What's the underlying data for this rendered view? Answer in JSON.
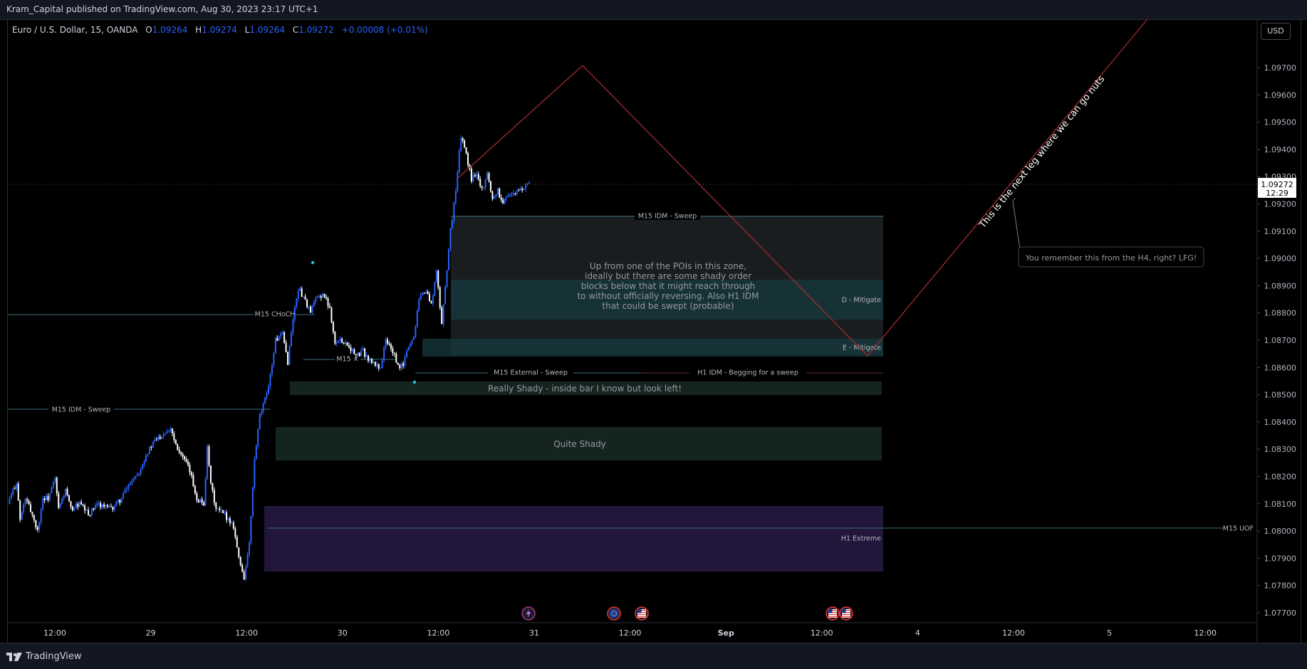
{
  "header": {
    "published_by": "Kram_Capital published on TradingView.com, Aug 30, 2023 23:17 UTC+1"
  },
  "legend": {
    "symbol": "Euro / U.S. Dollar, 15, OANDA",
    "o_label": "O",
    "o_value": "1.09264",
    "h_label": "H",
    "h_value": "1.09274",
    "l_label": "L",
    "l_value": "1.09264",
    "c_label": "C",
    "c_value": "1.09272",
    "change": "+0.00008 (+0.01%)"
  },
  "currency_button": "USD",
  "footer": {
    "brand": "TradingView"
  },
  "colors": {
    "up": "#2962ff",
    "down": "#ffffff",
    "price_line": "#4a4f5c",
    "zone_teal": "#17393d",
    "zone_dark": "#1a1d20",
    "zone_green": "#142520",
    "zone_purple": "#22163a",
    "projection": "#a22a2e"
  },
  "chart_data": {
    "type": "candlestick",
    "price_axis": {
      "ticks": [
        "1.07700",
        "1.07800",
        "1.07900",
        "1.08000",
        "1.08100",
        "1.08200",
        "1.08300",
        "1.08400",
        "1.08500",
        "1.08600",
        "1.08700",
        "1.08800",
        "1.08900",
        "1.09000",
        "1.09100",
        "1.09200",
        "1.09300",
        "1.09400",
        "1.09500",
        "1.09600",
        "1.09700"
      ],
      "range": [
        1.0764,
        1.0982
      ]
    },
    "time_axis": {
      "ticks": [
        "12:00",
        "29",
        "12:00",
        "30",
        "12:00",
        "31",
        "12:00",
        "Sep",
        "12:00",
        "4",
        "12:00",
        "5",
        "12:00"
      ]
    },
    "last_price": {
      "value": "1.09272",
      "countdown": "12:29"
    },
    "series": [
      {
        "name": "EUR/USD 15m",
        "path": [
          [
            0,
            1.081
          ],
          [
            6,
            1.0815
          ],
          [
            10,
            1.0818
          ],
          [
            14,
            1.0804
          ],
          [
            20,
            1.0812
          ],
          [
            28,
            1.0806
          ],
          [
            34,
            1.08
          ],
          [
            40,
            1.0812
          ],
          [
            46,
            1.0812
          ],
          [
            54,
            1.0819
          ],
          [
            58,
            1.0808
          ],
          [
            66,
            1.0815
          ],
          [
            72,
            1.0808
          ],
          [
            82,
            1.081
          ],
          [
            92,
            1.0806
          ],
          [
            104,
            1.081
          ],
          [
            118,
            1.0808
          ],
          [
            130,
            1.0812
          ],
          [
            140,
            1.0818
          ],
          [
            150,
            1.0822
          ],
          [
            158,
            1.0828
          ],
          [
            168,
            1.0833
          ],
          [
            178,
            1.0836
          ],
          [
            186,
            1.0838
          ],
          [
            192,
            1.0832
          ],
          [
            200,
            1.0827
          ],
          [
            208,
            1.0822
          ],
          [
            216,
            1.0812
          ],
          [
            224,
            1.081
          ],
          [
            228,
            1.083
          ],
          [
            232,
            1.0817
          ],
          [
            238,
            1.0808
          ],
          [
            248,
            1.0806
          ],
          [
            258,
            1.0802
          ],
          [
            264,
            1.079
          ],
          [
            270,
            1.0783
          ],
          [
            276,
            1.0795
          ],
          [
            282,
            1.0826
          ],
          [
            288,
            1.0842
          ],
          [
            294,
            1.0848
          ],
          [
            300,
            1.0857
          ],
          [
            306,
            1.087
          ],
          [
            314,
            1.0872
          ],
          [
            320,
            1.0862
          ],
          [
            326,
            1.0878
          ],
          [
            332,
            1.0889
          ],
          [
            338,
            1.0886
          ],
          [
            346,
            1.088
          ],
          [
            352,
            1.0885
          ],
          [
            360,
            1.0887
          ],
          [
            368,
            1.0882
          ],
          [
            374,
            1.0869
          ],
          [
            382,
            1.087
          ],
          [
            390,
            1.0868
          ],
          [
            398,
            1.0864
          ],
          [
            406,
            1.0866
          ],
          [
            412,
            1.0863
          ],
          [
            420,
            1.0861
          ],
          [
            426,
            1.086
          ],
          [
            432,
            1.087
          ],
          [
            440,
            1.0866
          ],
          [
            446,
            1.086
          ],
          [
            452,
            1.0861
          ],
          [
            458,
            1.0868
          ],
          [
            464,
            1.0871
          ],
          [
            470,
            1.0886
          ],
          [
            478,
            1.0888
          ],
          [
            484,
            1.0883
          ],
          [
            490,
            1.0895
          ],
          [
            496,
            1.0876
          ],
          [
            500,
            1.089
          ],
          [
            506,
            1.091
          ],
          [
            512,
            1.0925
          ],
          [
            518,
            1.0945
          ],
          [
            524,
            1.0938
          ],
          [
            530,
            1.0929
          ],
          [
            536,
            1.0932
          ],
          [
            542,
            1.0925
          ],
          [
            548,
            1.0931
          ],
          [
            554,
            1.0922
          ],
          [
            560,
            1.0925
          ],
          [
            566,
            1.092
          ],
          [
            572,
            1.0924
          ],
          [
            578,
            1.0923
          ],
          [
            584,
            1.0925
          ],
          [
            590,
            1.0926
          ],
          [
            596,
            1.0927
          ]
        ]
      }
    ],
    "annotations": {
      "labels": [
        {
          "id": "m15-idm-sweep-top",
          "text": "M15 IDM - Sweep"
        },
        {
          "id": "m15-choch",
          "text": "M15 CHoCH"
        },
        {
          "id": "m15-x",
          "text": "M15 ×"
        },
        {
          "id": "m15-external",
          "text": "M15 External - Sweep"
        },
        {
          "id": "h1-idm",
          "text": "H1 IDM - Begging for a sweep"
        },
        {
          "id": "m15-idm-sweep-left",
          "text": "M15 IDM - Sweep"
        },
        {
          "id": "d-mitigate",
          "text": "D - Mitigate"
        },
        {
          "id": "e-mitigate",
          "text": "E - Mitigate"
        },
        {
          "id": "h1-extreme",
          "text": "H1 Extreme"
        },
        {
          "id": "m15-uof",
          "text": "M15 UOF"
        }
      ],
      "zone_texts": {
        "poi_note": [
          "Up from one of the POIs in this zone,",
          "ideally but there are some shady order",
          "blocks below that it might reach through",
          "to without officially reversing. Also H1 IDM",
          "that could be swept (probable)"
        ],
        "really_shady": "Really Shady - inside bar I know but look left!",
        "quite_shady": "Quite Shady"
      },
      "next_leg_text": "This is the next leg where we can go nuts",
      "callout": "You remember this from the H4, right? LFG!"
    },
    "events": [
      "energy-event-icon",
      "eu-flag-icon",
      "us-flag-icon",
      "us-flag-icon",
      "us-flag-icon"
    ]
  }
}
